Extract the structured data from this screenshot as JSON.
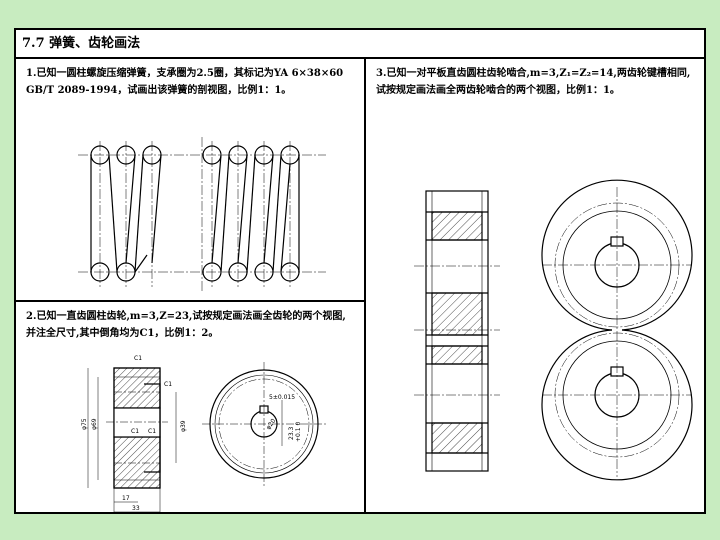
{
  "title": "7.7 弹簧、齿轮画法",
  "problems": {
    "p1": {
      "text": "1.已知一圆柱螺旋压缩弹簧，支承圈为2.5圈，其标记为YA 6×38×60 GB/T 2089-1994，试画出该弹簧的剖视图，比例1：1。"
    },
    "p2": {
      "text": "2.已知一直齿圆柱齿轮,m=3,Z=23,试按规定画法画全齿轮的两个视图,并注全尺寸,其中倒角均为C1，比例1：2。",
      "dims": {
        "c1_top": "C1",
        "c1_right": "C1",
        "c1_left_in": "C1",
        "c1_right_in": "C1",
        "phi75": "φ75",
        "phi69": "φ69",
        "phi39": "φ39",
        "w17": "17",
        "w33": "33",
        "key_width": "5±0.015",
        "key_depth": "23.3",
        "key_depth2": "+0.1 0",
        "bore": "φ20"
      }
    },
    "p3": {
      "text": "3.已知一对平板直齿圆柱齿轮啮合,m=3,Z₁=Z₂=14,两齿轮键槽相同,试按规定画法画全两齿轮啮合的两个视图，比例1：1。"
    }
  },
  "colors": {
    "page_bg": "#c8ecc0",
    "sheet_bg": "#ffffff",
    "ink": "#000000"
  }
}
